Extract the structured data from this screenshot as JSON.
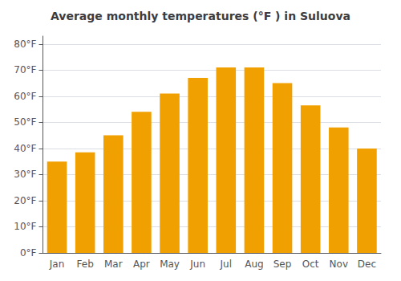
{
  "chart_data": {
    "type": "bar",
    "title": "Average monthly temperatures (°F ) in Suluova",
    "categories": [
      "Jan",
      "Feb",
      "Mar",
      "Apr",
      "May",
      "Jun",
      "Jul",
      "Aug",
      "Sep",
      "Oct",
      "Nov",
      "Dec"
    ],
    "values": [
      35,
      38.5,
      45,
      54,
      61,
      67,
      71,
      71,
      65,
      56.5,
      48,
      40
    ],
    "color": "#F0A000",
    "ylim": [
      0,
      83
    ],
    "yticks": [
      {
        "value": 0,
        "label": "0°F"
      },
      {
        "value": 10,
        "label": "10°F"
      },
      {
        "value": 20,
        "label": "20°F"
      },
      {
        "value": 30,
        "label": "30°F"
      },
      {
        "value": 40,
        "label": "40°F"
      },
      {
        "value": 50,
        "label": "50°F"
      },
      {
        "value": 60,
        "label": "60°F"
      },
      {
        "value": 70,
        "label": "70°F"
      },
      {
        "value": 80,
        "label": "80°F"
      }
    ],
    "grid": true
  }
}
